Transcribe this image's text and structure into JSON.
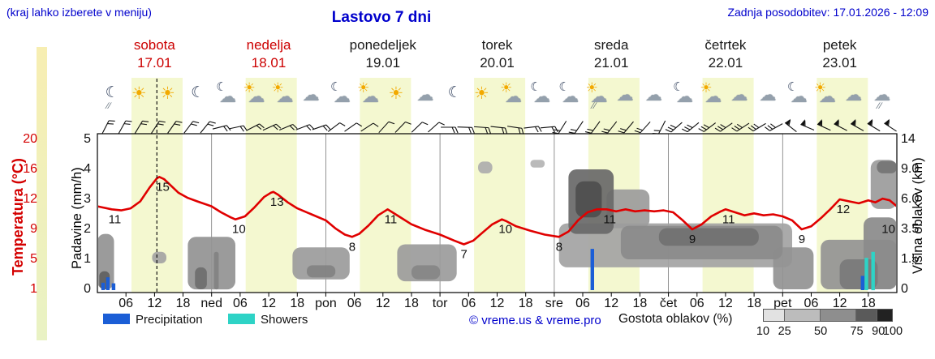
{
  "header": {
    "hint": "(kraj lahko izberete v meniju)",
    "title": "Lastovo 7 dni",
    "updated": "Zadnja posodobitev: 17.01.2026 - 12:09"
  },
  "days": [
    {
      "name": "sobota",
      "date": "17.01",
      "weekend": true,
      "icons": [
        "moon-showers",
        "sun",
        "sun",
        "moon"
      ],
      "wind": {
        "angle": 35,
        "ticks": 2
      }
    },
    {
      "name": "nedelja",
      "date": "18.01",
      "weekend": true,
      "icons": [
        "moon-cloud",
        "sun-cloud",
        "sun-cloud",
        "cloud"
      ],
      "wind": {
        "angle": 70,
        "ticks": 2
      }
    },
    {
      "name": "ponedeljek",
      "date": "19.01",
      "weekend": false,
      "icons": [
        "moon-cloud",
        "sun-cloud",
        "sun",
        "cloud"
      ],
      "wind": {
        "angle": 50,
        "ticks": 1
      }
    },
    {
      "name": "torek",
      "date": "20.01",
      "weekend": false,
      "icons": [
        "moon",
        "sun",
        "sun-cloud",
        "moon-cloud"
      ],
      "wind": {
        "angle": 90,
        "ticks": 2
      }
    },
    {
      "name": "sreda",
      "date": "21.01",
      "weekend": false,
      "icons": [
        "moon-cloud",
        "sun-cloud-showers",
        "cloud",
        "cloud"
      ],
      "wind": {
        "angle": 215,
        "ticks": 2
      }
    },
    {
      "name": "četrtek",
      "date": "22.01",
      "weekend": false,
      "icons": [
        "moon-cloud",
        "sun-cloud",
        "cloud",
        "cloud"
      ],
      "wind": {
        "angle": 235,
        "ticks": 3
      }
    },
    {
      "name": "petek",
      "date": "23.01",
      "weekend": false,
      "icons": [
        "moon-cloud",
        "sun-cloud",
        "cloud",
        "cloud-showers"
      ],
      "wind": {
        "angle": 300,
        "ticks": 4
      }
    }
  ],
  "axes": {
    "temp_label": "Temperatura (°C)",
    "temp_ticks": [
      "20",
      "16",
      "12",
      "9",
      "5",
      "1"
    ],
    "precip_label": "Padavine (mm/h)",
    "precip_ticks": [
      "5",
      "4",
      "3",
      "2",
      "1",
      "0"
    ],
    "cloud_label": "Višina oblakov (km)",
    "cloud_ticks": [
      "14",
      "9.0",
      "6.0",
      "3.5",
      "1.5",
      "0"
    ],
    "x_ticks": [
      [
        "06",
        6
      ],
      [
        "12",
        12
      ],
      [
        "18",
        18
      ],
      [
        "ned",
        24
      ],
      [
        "06",
        30
      ],
      [
        "12",
        36
      ],
      [
        "18",
        42
      ],
      [
        "pon",
        48
      ],
      [
        "06",
        54
      ],
      [
        "12",
        60
      ],
      [
        "18",
        66
      ],
      [
        "tor",
        72
      ],
      [
        "06",
        78
      ],
      [
        "12",
        84
      ],
      [
        "18",
        90
      ],
      [
        "sre",
        96
      ],
      [
        "06",
        102
      ],
      [
        "12",
        108
      ],
      [
        "18",
        114
      ],
      [
        "čet",
        120
      ],
      [
        "06",
        126
      ],
      [
        "12",
        132
      ],
      [
        "18",
        138
      ],
      [
        "pet",
        144
      ],
      [
        "06",
        150
      ],
      [
        "12",
        156
      ],
      [
        "18",
        162
      ]
    ]
  },
  "legend": {
    "precipitation": "Precipitation",
    "showers": "Showers",
    "credit": "© vreme.us & vreme.pro",
    "cloud_density_label": "Gostota oblakov (%)",
    "cloud_density_ticks": [
      10,
      25,
      50,
      75,
      90,
      100
    ],
    "cloud_density_scale": [
      {
        "from": 10,
        "to": 25,
        "color": "#e2e2e2"
      },
      {
        "from": 25,
        "to": 50,
        "color": "#bcbcbc"
      },
      {
        "from": 50,
        "to": 75,
        "color": "#8e8e8e"
      },
      {
        "from": 75,
        "to": 90,
        "color": "#5a5a5a"
      },
      {
        "from": 90,
        "to": 100,
        "color": "#222222"
      }
    ],
    "precip_color": "#1b5ed6",
    "showers_color": "#2ed3c6"
  },
  "chart_data": {
    "type": "line",
    "title": "Lastovo 7 dni",
    "x_unit": "hours from 17.01 00:00, 7 days total (168 h)",
    "now_hour": 12.5,
    "temperature": {
      "color": "#e00000",
      "axis_ticks_c": [
        20,
        16,
        12,
        9,
        5,
        1
      ],
      "labeled_points": [
        [
          3,
          11
        ],
        [
          13,
          15
        ],
        [
          29,
          10
        ],
        [
          37,
          13
        ],
        [
          53.5,
          8
        ],
        [
          61,
          11
        ],
        [
          77,
          7
        ],
        [
          85,
          10
        ],
        [
          97,
          8
        ],
        [
          107,
          11
        ],
        [
          125,
          9
        ],
        [
          132,
          11
        ],
        [
          148,
          9
        ],
        [
          156,
          12
        ],
        [
          165.5,
          10
        ]
      ],
      "curve": [
        [
          0,
          11.3
        ],
        [
          3,
          11
        ],
        [
          5,
          10.9
        ],
        [
          7,
          11.1
        ],
        [
          9,
          11.8
        ],
        [
          11,
          13.6
        ],
        [
          12.5,
          14.8
        ],
        [
          13,
          15
        ],
        [
          14,
          14.7
        ],
        [
          15.5,
          13.8
        ],
        [
          17,
          12.9
        ],
        [
          19,
          12.2
        ],
        [
          21,
          11.8
        ],
        [
          24,
          11.3
        ],
        [
          26,
          10.7
        ],
        [
          28,
          10.2
        ],
        [
          29,
          10
        ],
        [
          31,
          10.3
        ],
        [
          33,
          11.2
        ],
        [
          35,
          12.3
        ],
        [
          36.5,
          12.9
        ],
        [
          37,
          13
        ],
        [
          38,
          12.6
        ],
        [
          40,
          11.7
        ],
        [
          42,
          11.1
        ],
        [
          45,
          10.5
        ],
        [
          48,
          9.9
        ],
        [
          50,
          9.1
        ],
        [
          52,
          8.3
        ],
        [
          53.5,
          8
        ],
        [
          55,
          8.4
        ],
        [
          57,
          9.4
        ],
        [
          59,
          10.4
        ],
        [
          61,
          11
        ],
        [
          62,
          10.7
        ],
        [
          64,
          10.1
        ],
        [
          66,
          9.5
        ],
        [
          69,
          8.9
        ],
        [
          72,
          8.3
        ],
        [
          75,
          7.5
        ],
        [
          77,
          7
        ],
        [
          79,
          7.5
        ],
        [
          81,
          8.6
        ],
        [
          83,
          9.5
        ],
        [
          85,
          10
        ],
        [
          86,
          9.8
        ],
        [
          88,
          9.3
        ],
        [
          91,
          8.8
        ],
        [
          94,
          8.3
        ],
        [
          97,
          8
        ],
        [
          99,
          8.7
        ],
        [
          101,
          9.9
        ],
        [
          103,
          10.7
        ],
        [
          105,
          11
        ],
        [
          107,
          11
        ],
        [
          109,
          10.8
        ],
        [
          111,
          11
        ],
        [
          113,
          10.8
        ],
        [
          115,
          10.9
        ],
        [
          117,
          10.8
        ],
        [
          119,
          10.9
        ],
        [
          121,
          10.7
        ],
        [
          123,
          9.9
        ],
        [
          125,
          9
        ],
        [
          127,
          9.5
        ],
        [
          129,
          10.3
        ],
        [
          131,
          10.8
        ],
        [
          132,
          11
        ],
        [
          134,
          10.7
        ],
        [
          136,
          10.4
        ],
        [
          138,
          10.6
        ],
        [
          140,
          10.4
        ],
        [
          142,
          10.5
        ],
        [
          144,
          10.3
        ],
        [
          146,
          9.9
        ],
        [
          148,
          9
        ],
        [
          150,
          9.3
        ],
        [
          152,
          10.1
        ],
        [
          154,
          11
        ],
        [
          156,
          12
        ],
        [
          158,
          11.8
        ],
        [
          160,
          11.6
        ],
        [
          162,
          11.9
        ],
        [
          163.5,
          11.7
        ],
        [
          165,
          12.1
        ],
        [
          166.5,
          11.9
        ],
        [
          168,
          11.3
        ]
      ]
    },
    "precipitation_mm_h": {
      "axis_ticks": [
        5,
        4,
        3,
        2,
        1,
        0
      ],
      "bars": [
        [
          1.2,
          0.22,
          "precipitation"
        ],
        [
          2.2,
          0.4,
          "precipitation"
        ],
        [
          3.4,
          0.2,
          "precipitation"
        ],
        [
          104,
          1.35,
          "precipitation"
        ],
        [
          160.8,
          0.45,
          "precipitation"
        ],
        [
          161.6,
          1.05,
          "showers"
        ],
        [
          163,
          1.25,
          "showers"
        ]
      ]
    },
    "cloud_height_km": {
      "axis_ticks": [
        "14",
        "9.0",
        "6.0",
        "3.5",
        "1.5",
        "0"
      ],
      "regions": [
        [
          0,
          3.5,
          0,
          3.2,
          50
        ],
        [
          0.4,
          2.6,
          0,
          0.9,
          80
        ],
        [
          11.5,
          14.5,
          1.3,
          2.0,
          40
        ],
        [
          19,
          29,
          0,
          3.0,
          50
        ],
        [
          20.5,
          23,
          0,
          1.1,
          72
        ],
        [
          24.5,
          25.5,
          0,
          2.0,
          60
        ],
        [
          41,
          53,
          0.5,
          2.3,
          45
        ],
        [
          44,
          50,
          0.6,
          1.2,
          60
        ],
        [
          63,
          75.5,
          0.4,
          2.5,
          45
        ],
        [
          66,
          72,
          0.5,
          1.2,
          58
        ],
        [
          80,
          83,
          8.6,
          10.3,
          35
        ],
        [
          91,
          94,
          9.3,
          10.6,
          30
        ],
        [
          97,
          146,
          1.1,
          4.0,
          40
        ],
        [
          99,
          108.5,
          3.2,
          9.0,
          75
        ],
        [
          100.5,
          106,
          4.5,
          7.8,
          90
        ],
        [
          107,
          116,
          3.6,
          7.0,
          45
        ],
        [
          110,
          144,
          1.5,
          3.8,
          55
        ],
        [
          118,
          139,
          2.4,
          3.6,
          70
        ],
        [
          142,
          150.5,
          0,
          2.3,
          50
        ],
        [
          152,
          168,
          0,
          2.8,
          50
        ],
        [
          156,
          164,
          0,
          1.5,
          65
        ],
        [
          161,
          168,
          0,
          4.5,
          55
        ],
        [
          162.5,
          168,
          5.2,
          10.6,
          45
        ],
        [
          163.8,
          168,
          8.6,
          10.4,
          68
        ]
      ]
    }
  }
}
